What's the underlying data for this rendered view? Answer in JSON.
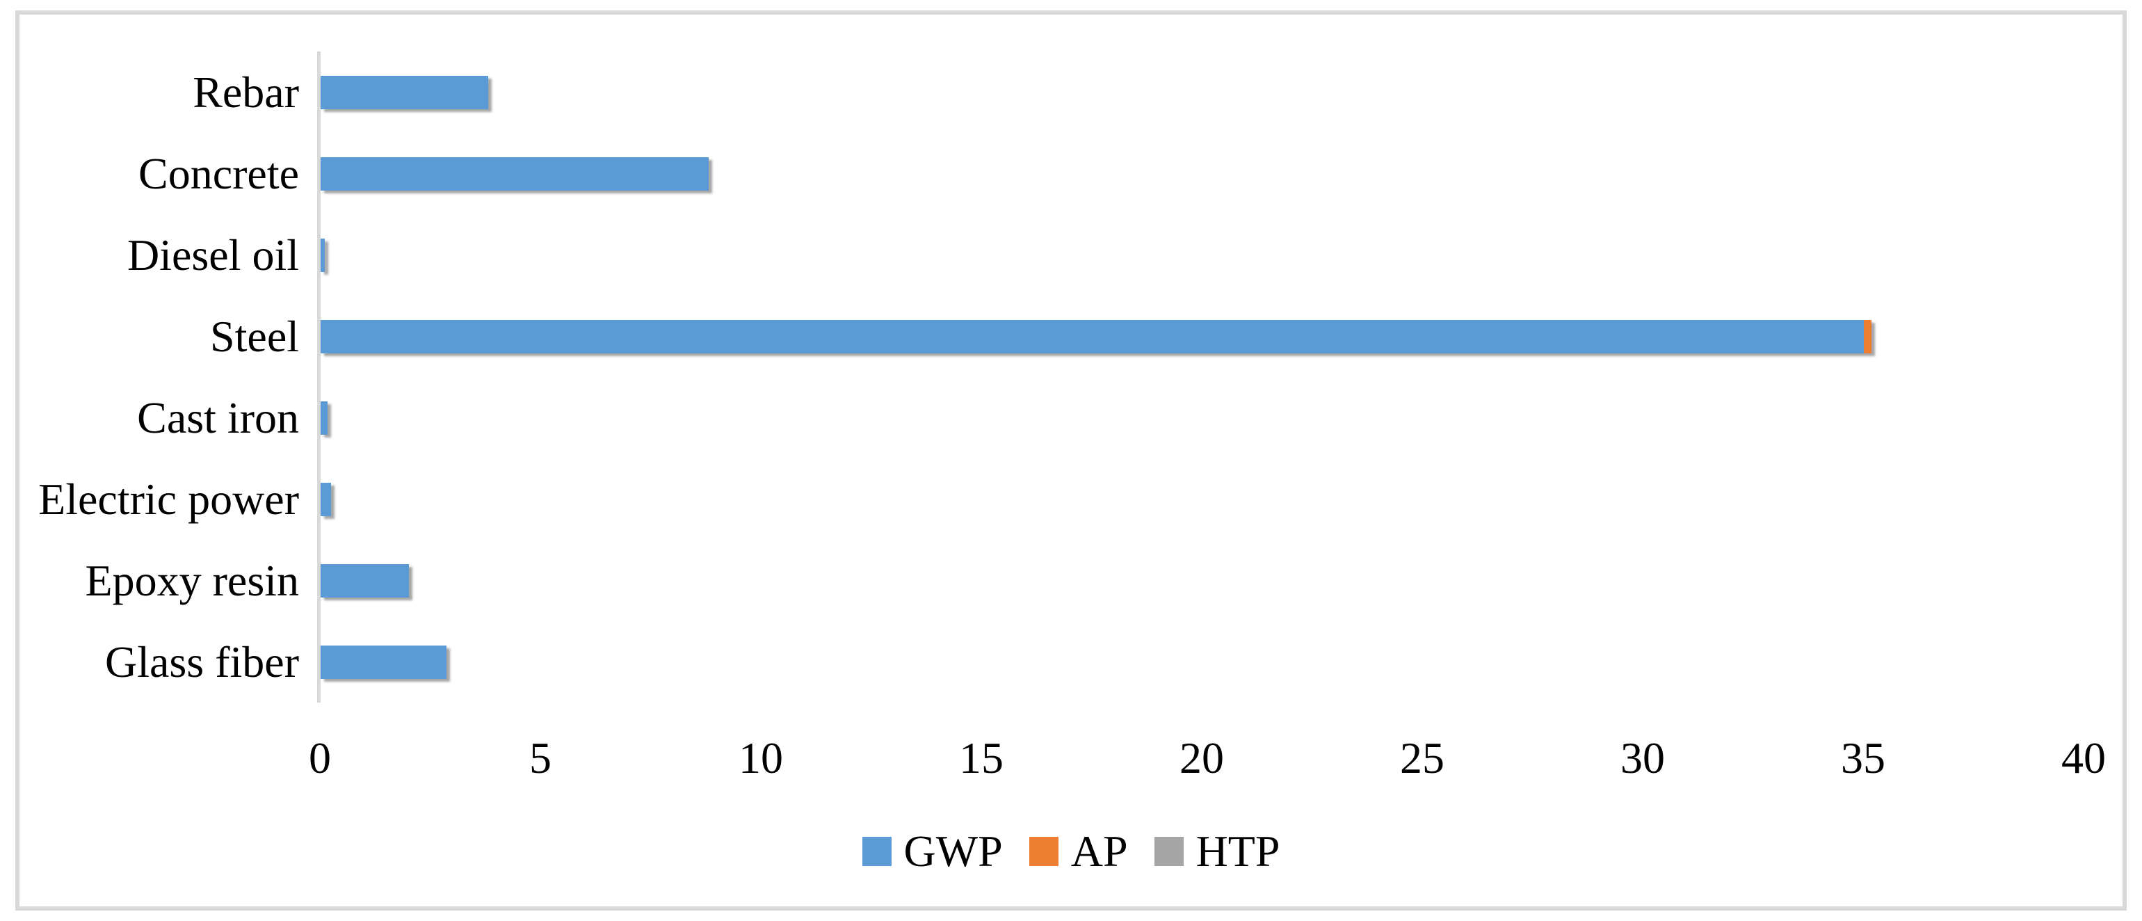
{
  "chart_data": {
    "type": "bar",
    "orientation": "horizontal",
    "stacked": true,
    "title": "",
    "xlabel": "",
    "ylabel": "",
    "categories": [
      "Rebar",
      "Concrete",
      "Diesel oil",
      "Steel",
      "Cast iron",
      "Electric power",
      "Epoxy resin",
      "Glass fiber"
    ],
    "series": [
      {
        "name": "GWP",
        "color": "#5B9BD5",
        "values": [
          3.8,
          8.8,
          0.1,
          35.0,
          0.16,
          0.24,
          2.0,
          2.85
        ]
      },
      {
        "name": "AP",
        "color": "#ED7D31",
        "values": [
          0,
          0,
          0,
          0.17,
          0,
          0,
          0,
          0
        ]
      },
      {
        "name": "HTP",
        "color": "#A5A5A5",
        "values": [
          0,
          0,
          0,
          0,
          0,
          0,
          0,
          0
        ]
      }
    ],
    "xlim": [
      0,
      40
    ],
    "xticks": [
      0,
      5,
      10,
      15,
      20,
      25,
      30,
      35,
      40
    ],
    "grid": false,
    "legend_position": "bottom",
    "legend_entries": [
      "GWP",
      "AP",
      "HTP"
    ]
  },
  "colors": {
    "gwp": "#5B9BD5",
    "ap": "#ED7D31",
    "htp": "#A5A5A5",
    "axis_line": "#D9D9D9",
    "frame_border": "#D9D9D9",
    "text": "#000000"
  }
}
